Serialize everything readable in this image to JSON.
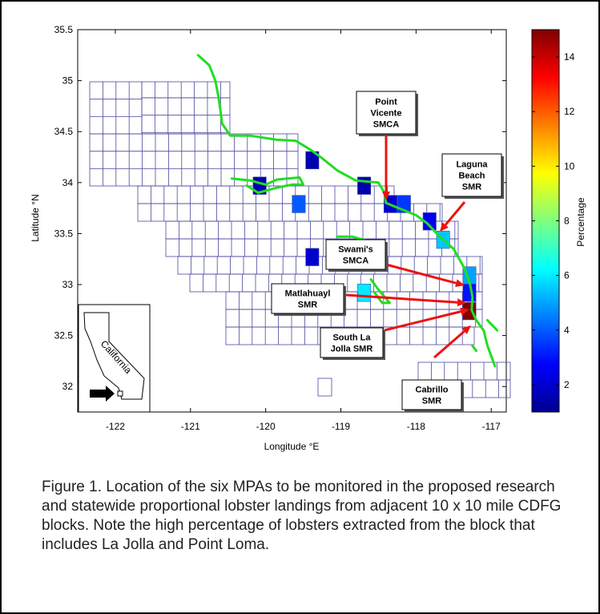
{
  "chart_data": {
    "type": "heatmap",
    "xlabel": "Longitude °E",
    "ylabel": "Latitude °N",
    "xlim": [
      -122.5,
      -116.8
    ],
    "ylim": [
      31.75,
      35.5
    ],
    "x_ticks": [
      -122,
      -121,
      -120,
      -119,
      -118,
      -117
    ],
    "y_ticks": [
      32,
      32.5,
      33,
      33.5,
      34,
      34.5,
      35,
      35.5
    ],
    "colorbar": {
      "label": "Percentage",
      "range": [
        1,
        15
      ],
      "ticks": [
        2,
        4,
        6,
        8,
        10,
        12,
        14
      ]
    },
    "grid_note": "10 x 10 mile CDFG blocks",
    "colored_blocks": [
      {
        "lon": -119.38,
        "lat": 34.22,
        "value": 1.5
      },
      {
        "lon": -120.08,
        "lat": 33.97,
        "value": 1.5
      },
      {
        "lon": -119.56,
        "lat": 33.79,
        "value": 4.0
      },
      {
        "lon": -118.69,
        "lat": 33.97,
        "value": 1.5
      },
      {
        "lon": -118.34,
        "lat": 33.79,
        "value": 2.0
      },
      {
        "lon": -118.16,
        "lat": 33.79,
        "value": 3.5
      },
      {
        "lon": -117.82,
        "lat": 33.62,
        "value": 2.5
      },
      {
        "lon": -117.64,
        "lat": 33.44,
        "value": 5.5
      },
      {
        "lon": -119.38,
        "lat": 33.27,
        "value": 2.0
      },
      {
        "lon": -117.29,
        "lat": 33.09,
        "value": 5.0
      },
      {
        "lon": -118.69,
        "lat": 32.92,
        "value": 6.0
      },
      {
        "lon": -117.29,
        "lat": 32.92,
        "value": 3.0
      },
      {
        "lon": -117.29,
        "lat": 32.74,
        "value": 15.0
      }
    ],
    "coastline": [
      [
        -120.9,
        35.25
      ],
      [
        -120.75,
        35.15
      ],
      [
        -120.67,
        35.0
      ],
      [
        -120.63,
        34.85
      ],
      [
        -120.6,
        34.7
      ],
      [
        -120.58,
        34.58
      ],
      [
        -120.47,
        34.46
      ],
      [
        -120.2,
        34.46
      ],
      [
        -119.85,
        34.42
      ],
      [
        -119.6,
        34.41
      ],
      [
        -119.4,
        34.32
      ],
      [
        -119.25,
        34.24
      ],
      [
        -119.05,
        34.12
      ],
      [
        -118.8,
        34.02
      ],
      [
        -118.5,
        34.0
      ],
      [
        -118.42,
        33.9
      ],
      [
        -118.4,
        33.8
      ],
      [
        -118.2,
        33.74
      ],
      [
        -118.0,
        33.68
      ],
      [
        -117.85,
        33.6
      ],
      [
        -117.7,
        33.48
      ],
      [
        -117.5,
        33.35
      ],
      [
        -117.35,
        33.15
      ],
      [
        -117.28,
        33.0
      ],
      [
        -117.25,
        32.88
      ],
      [
        -117.26,
        32.75
      ],
      [
        -117.2,
        32.65
      ],
      [
        -117.1,
        32.55
      ],
      [
        -117.05,
        32.4
      ],
      [
        -116.95,
        32.2
      ]
    ],
    "islands": [
      [
        [
          -120.45,
          34.04
        ],
        [
          -120.2,
          34.02
        ],
        [
          -120.0,
          33.98
        ],
        [
          -119.85,
          34.03
        ],
        [
          -119.55,
          34.05
        ],
        [
          -119.5,
          33.98
        ],
        [
          -119.65,
          33.98
        ],
        [
          -119.85,
          33.95
        ],
        [
          -120.1,
          33.9
        ],
        [
          -120.25,
          33.97
        ]
      ],
      [
        [
          -119.05,
          33.47
        ],
        [
          -118.85,
          33.47
        ],
        [
          -118.6,
          33.42
        ],
        [
          -118.48,
          33.36
        ],
        [
          -118.62,
          33.36
        ],
        [
          -118.85,
          33.42
        ]
      ],
      [
        [
          -118.6,
          33.05
        ],
        [
          -118.5,
          32.95
        ],
        [
          -118.35,
          32.82
        ],
        [
          -118.45,
          32.82
        ],
        [
          -118.55,
          32.92
        ]
      ],
      [
        [
          -117.05,
          32.65
        ],
        [
          -116.92,
          32.55
        ]
      ],
      [
        [
          -117.25,
          32.4
        ],
        [
          -117.2,
          32.35
        ]
      ]
    ],
    "annotations": [
      {
        "name": "point-vicente",
        "lines": [
          "Point",
          "Vicente",
          "SMCA"
        ]
      },
      {
        "name": "laguna-beach",
        "lines": [
          "Laguna",
          "Beach",
          "SMR"
        ]
      },
      {
        "name": "swamis",
        "lines": [
          "Swami's",
          "SMCA"
        ]
      },
      {
        "name": "matlahuayl",
        "lines": [
          "Matlahuayl",
          "SMR"
        ]
      },
      {
        "name": "south-la-jolla",
        "lines": [
          "South La",
          "Jolla SMR"
        ]
      },
      {
        "name": "cabrillo",
        "lines": [
          "Cabrillo",
          "SMR"
        ]
      }
    ],
    "inset_label": "California"
  },
  "caption": "Figure 1.  Location of the six MPAs to be monitored in the proposed research and statewide proportional lobster landings from adjacent 10 x 10 mile CDFG blocks.  Note the high percentage of lobsters extracted from the block that includes La Jolla and Point Loma."
}
